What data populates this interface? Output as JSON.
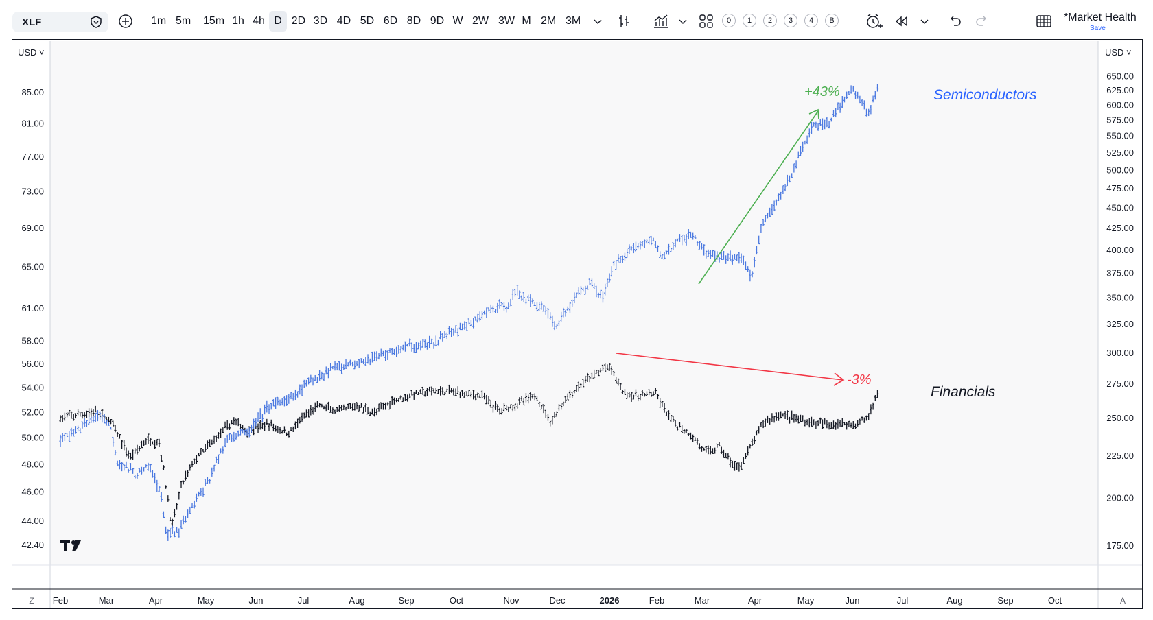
{
  "toolbar": {
    "symbol": "XLF",
    "intervals": [
      "1m",
      "5m",
      "15m",
      "1h",
      "4h",
      "D",
      "2D",
      "3D",
      "4D",
      "5D",
      "6D",
      "8D",
      "9D",
      "W",
      "2W",
      "3W",
      "M",
      "2M",
      "3M"
    ],
    "active_interval": "D",
    "numbered": [
      "0",
      "1",
      "2",
      "3",
      "4",
      "B"
    ],
    "layout_name": "*Market Health",
    "save_label": "Save"
  },
  "chart_data": {
    "type": "bar",
    "subtype": "ohlc",
    "currency_left": "USD",
    "currency_right": "USD",
    "x_ticks": [
      "Feb",
      "Mar",
      "Apr",
      "May",
      "Jun",
      "Jul",
      "Aug",
      "Sep",
      "Oct",
      "Nov",
      "Dec",
      "2026",
      "Feb",
      "Mar",
      "Apr",
      "May",
      "Jun",
      "Jul",
      "Aug",
      "Sep",
      "Oct"
    ],
    "left_axis": {
      "scale": "log",
      "ticks": [
        "85.00",
        "81.00",
        "77.00",
        "73.00",
        "69.00",
        "65.00",
        "61.00",
        "58.00",
        "56.00",
        "54.00",
        "52.00",
        "50.00",
        "48.00",
        "46.00",
        "44.00",
        "42.40"
      ]
    },
    "right_axis": {
      "scale": "log",
      "ticks": [
        "650.00",
        "625.00",
        "600.00",
        "575.00",
        "550.00",
        "525.00",
        "500.00",
        "475.00",
        "450.00",
        "425.00",
        "400.00",
        "375.00",
        "350.00",
        "325.00",
        "300.00",
        "275.00",
        "250.00",
        "225.00",
        "200.00",
        "175.00"
      ]
    },
    "series": [
      {
        "name": "Financials",
        "axis": "left",
        "color": "#131722",
        "keypoints": [
          [
            0,
            51.5
          ],
          [
            0.7,
            52.0
          ],
          [
            1.0,
            51.3
          ],
          [
            1.4,
            48.5
          ],
          [
            1.75,
            49.8
          ],
          [
            2.0,
            49.6
          ],
          [
            2.25,
            43.5
          ],
          [
            2.45,
            46.5
          ],
          [
            2.7,
            48.2
          ],
          [
            3.2,
            50.2
          ],
          [
            3.5,
            51.3
          ],
          [
            3.75,
            50.5
          ],
          [
            4.2,
            51.0
          ],
          [
            4.6,
            50.3
          ],
          [
            4.9,
            51.5
          ],
          [
            5.2,
            52.5
          ],
          [
            5.6,
            52.0
          ],
          [
            6.0,
            52.5
          ],
          [
            6.35,
            51.9
          ],
          [
            6.7,
            52.9
          ],
          [
            7.2,
            53.5
          ],
          [
            7.6,
            53.7
          ],
          [
            8.0,
            53.6
          ],
          [
            8.5,
            53.3
          ],
          [
            8.85,
            52.1
          ],
          [
            9.2,
            52.6
          ],
          [
            9.6,
            53.3
          ],
          [
            9.9,
            51.2
          ],
          [
            10.2,
            53.0
          ],
          [
            10.6,
            54.5
          ],
          [
            10.95,
            55.5
          ],
          [
            11.1,
            55.7
          ],
          [
            11.35,
            53.7
          ],
          [
            11.6,
            53.2
          ],
          [
            12.0,
            53.5
          ],
          [
            12.35,
            51.2
          ],
          [
            12.7,
            50.3
          ],
          [
            13.05,
            48.8
          ],
          [
            13.3,
            49.3
          ],
          [
            13.65,
            47.6
          ],
          [
            13.85,
            48.6
          ],
          [
            14.2,
            51.2
          ],
          [
            14.55,
            51.8
          ],
          [
            15.0,
            51.3
          ],
          [
            15.4,
            51.0
          ],
          [
            15.75,
            51.1
          ],
          [
            16.05,
            51.0
          ],
          [
            16.3,
            51.5
          ],
          [
            16.5,
            53.5
          ]
        ]
      },
      {
        "name": "Semiconductors",
        "axis": "right",
        "color": "#4a78e0",
        "keypoints": [
          [
            0,
            235
          ],
          [
            0.4,
            243
          ],
          [
            0.8,
            252
          ],
          [
            1.0,
            245
          ],
          [
            1.15,
            222
          ],
          [
            1.5,
            213
          ],
          [
            1.8,
            218
          ],
          [
            2.0,
            205
          ],
          [
            2.15,
            180
          ],
          [
            2.4,
            182
          ],
          [
            2.6,
            192
          ],
          [
            3.0,
            210
          ],
          [
            3.4,
            238
          ],
          [
            3.8,
            240
          ],
          [
            4.2,
            258
          ],
          [
            4.6,
            262
          ],
          [
            5.0,
            275
          ],
          [
            5.5,
            288
          ],
          [
            6.0,
            292
          ],
          [
            6.5,
            298
          ],
          [
            7.0,
            305
          ],
          [
            7.5,
            307
          ],
          [
            7.9,
            318
          ],
          [
            8.3,
            325
          ],
          [
            8.6,
            336
          ],
          [
            9.0,
            342
          ],
          [
            9.2,
            355
          ],
          [
            9.5,
            345
          ],
          [
            9.8,
            340
          ],
          [
            10.0,
            322
          ],
          [
            10.4,
            350
          ],
          [
            10.7,
            365
          ],
          [
            10.95,
            350
          ],
          [
            11.2,
            385
          ],
          [
            11.5,
            400
          ],
          [
            11.95,
            412
          ],
          [
            12.15,
            392
          ],
          [
            12.45,
            408
          ],
          [
            12.75,
            418
          ],
          [
            13.05,
            395
          ],
          [
            13.4,
            390
          ],
          [
            13.75,
            392
          ],
          [
            13.95,
            368
          ],
          [
            14.15,
            425
          ],
          [
            14.5,
            460
          ],
          [
            14.8,
            500
          ],
          [
            15.2,
            565
          ],
          [
            15.5,
            570
          ],
          [
            15.75,
            595
          ],
          [
            16.0,
            630
          ],
          [
            16.2,
            600
          ],
          [
            16.35,
            585
          ],
          [
            16.5,
            630
          ]
        ]
      }
    ],
    "annotations": [
      {
        "text": "+43%",
        "color": "#4caf50"
      },
      {
        "text": "-3%",
        "color": "#f23645"
      },
      {
        "text": "Semiconductors",
        "color": "#2962ff"
      },
      {
        "text": "Financials",
        "color": "#131722"
      }
    ],
    "bottom_left_label": "Z",
    "bottom_right_label": "A"
  }
}
